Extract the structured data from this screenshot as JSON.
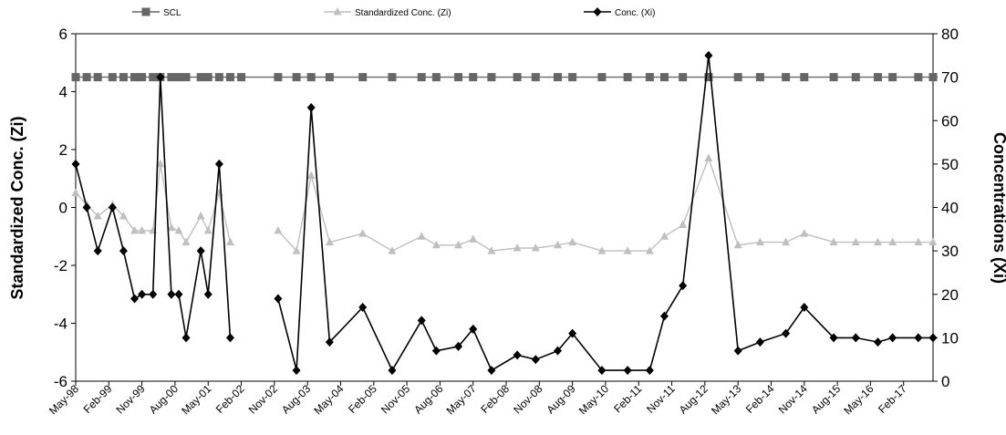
{
  "chart_data": {
    "type": "line",
    "title": "",
    "ylabel": "Standardized Conc. (Zi)",
    "y2label": "Concentrations (Xi)",
    "ylim": [
      -6,
      6
    ],
    "y2lim": [
      0,
      80
    ],
    "yticks": [
      "6",
      "4",
      "2",
      "0",
      "-2",
      "-4",
      "-6"
    ],
    "y2ticks": [
      "80",
      "70",
      "60",
      "50",
      "40",
      "30",
      "20",
      "10",
      "0"
    ],
    "x_tick_labels": [
      "May-98",
      "Feb-99",
      "Nov-99",
      "Aug-00",
      "May-01",
      "Feb-02",
      "Nov-02",
      "Aug-03",
      "May-04",
      "Feb-05",
      "Nov-05",
      "Aug-06",
      "May-07",
      "Feb-08",
      "Nov-08",
      "Aug-09",
      "May-10",
      "Feb-11",
      "Nov-11",
      "Aug-12",
      "May-13",
      "Feb-14",
      "Nov-14",
      "Aug-15",
      "May-16",
      "Feb-17"
    ],
    "x_range_months": [
      "1998-05",
      "2017-10"
    ],
    "legend_position": "top",
    "grid": false,
    "x": [
      "1998-05",
      "1998-08",
      "1998-11",
      "1999-03",
      "1999-06",
      "1999-09",
      "1999-11",
      "2000-02",
      "2000-04",
      "2000-07",
      "2000-09",
      "2000-11",
      "2001-03",
      "2001-05",
      "2001-08",
      "2001-11",
      "2002-02",
      "2002-12",
      "2003-05",
      "2003-09",
      "2004-02",
      "2004-11",
      "2005-07",
      "2006-03",
      "2006-07",
      "2007-01",
      "2007-05",
      "2007-10",
      "2008-05",
      "2008-10",
      "2009-04",
      "2009-08",
      "2010-04",
      "2010-11",
      "2011-05",
      "2011-09",
      "2012-02",
      "2012-09",
      "2013-05",
      "2013-11",
      "2014-06",
      "2014-11",
      "2015-07",
      "2016-01",
      "2016-07",
      "2016-11",
      "2017-06",
      "2017-10"
    ],
    "series": [
      {
        "name": "SCL",
        "axis": "right",
        "color": "#666666",
        "marker": "square",
        "values": [
          70,
          70,
          70,
          70,
          70,
          70,
          70,
          70,
          70,
          70,
          70,
          70,
          70,
          70,
          70,
          70,
          70,
          70,
          70,
          70,
          70,
          70,
          70,
          70,
          70,
          70,
          70,
          70,
          70,
          70,
          70,
          70,
          70,
          70,
          70,
          70,
          70,
          70,
          70,
          70,
          70,
          70,
          70,
          70,
          70,
          70,
          70,
          70
        ]
      },
      {
        "name": "Standardized Conc. (Zi)",
        "axis": "left",
        "color": "#bfbfbf",
        "marker": "triangle",
        "values": [
          0.5,
          0.1,
          -0.3,
          0.1,
          -0.3,
          -0.8,
          -0.8,
          -0.8,
          1.5,
          -0.7,
          -0.8,
          -1.2,
          -0.3,
          -0.8,
          0.5,
          -1.2,
          null,
          -0.8,
          -1.5,
          1.1,
          -1.2,
          -0.9,
          -1.5,
          -1.0,
          -1.3,
          -1.3,
          -1.1,
          -1.5,
          -1.4,
          -1.4,
          -1.3,
          -1.2,
          -1.5,
          -1.5,
          -1.5,
          -1.0,
          -0.6,
          1.7,
          -1.3,
          -1.2,
          -1.2,
          -0.9,
          -1.2,
          -1.2,
          -1.2,
          -1.2,
          -1.2,
          -1.2
        ]
      },
      {
        "name": "Conc. (Xi)",
        "axis": "right",
        "color": "#000000",
        "marker": "diamond",
        "values": [
          50,
          40,
          30,
          40,
          30,
          19,
          20,
          20,
          70,
          20,
          20,
          10,
          30,
          20,
          50,
          10,
          null,
          19,
          2.5,
          63,
          9,
          17,
          2.5,
          14,
          7,
          8,
          12,
          2.5,
          6,
          5,
          7,
          11,
          2.5,
          2.5,
          2.5,
          15,
          22,
          75,
          7,
          9,
          11,
          17,
          10,
          10,
          9,
          10,
          10,
          10
        ]
      }
    ]
  }
}
